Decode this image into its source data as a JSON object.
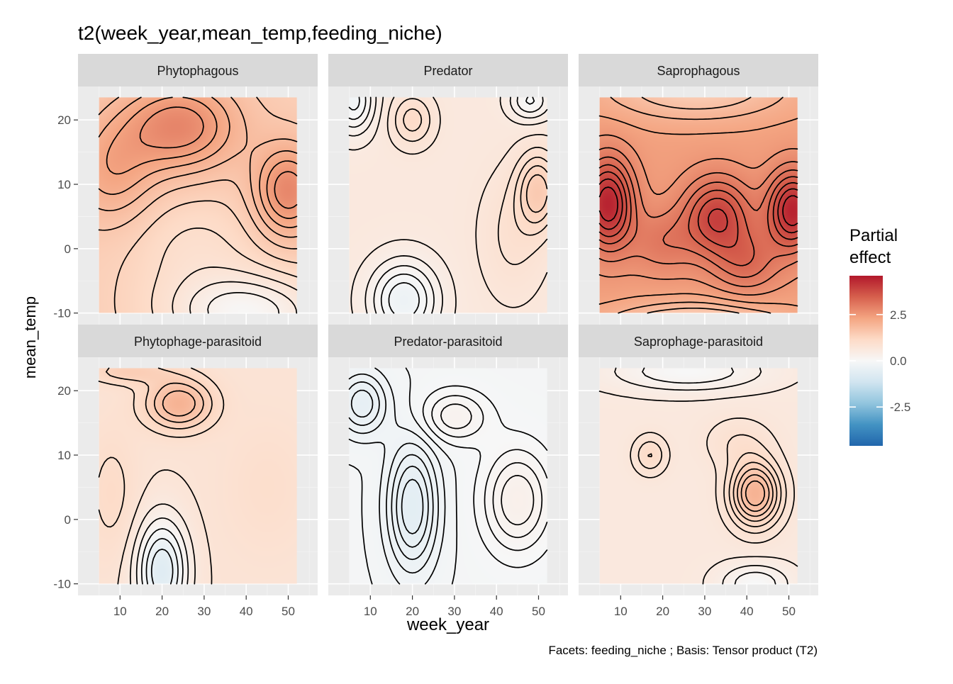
{
  "chart_data": {
    "type": "heatmap",
    "title": "t2(week_year,mean_temp,feeding_niche)",
    "caption": "Facets: feeding_niche ; Basis: Tensor product (T2)",
    "xlabel": "week_year",
    "ylabel": "mean_temp",
    "x_range": [
      5,
      52
    ],
    "y_range": [
      -10,
      23.5
    ],
    "x_ticks": [
      10,
      20,
      30,
      40,
      50
    ],
    "y_ticks": [
      -10,
      0,
      10,
      20
    ],
    "y_tick_labels": [
      "-10",
      "0",
      "10",
      "20"
    ],
    "x_tick_labels": [
      "10",
      "20",
      "30",
      "40",
      "50"
    ],
    "legend": {
      "title": "Partial effect",
      "title_lines": [
        "Partial",
        "effect"
      ],
      "position": "right",
      "limits": [
        -4.6,
        4.6
      ],
      "ticks": [
        -2.5,
        0.0,
        2.5
      ],
      "tick_labels": [
        "-2.5",
        "0.0",
        "2.5"
      ],
      "colors": [
        "#2166ac",
        "#4393c3",
        "#92c5de",
        "#d1e5f0",
        "#f7f7f7",
        "#fddbc7",
        "#f4a582",
        "#d6604d",
        "#b2182b"
      ]
    },
    "grid": true,
    "contours": true,
    "facets": [
      {
        "label": "Phytophagous",
        "base": 1.4,
        "components": [
          {
            "x": 24,
            "y": 19,
            "sx": 14,
            "sy": 7,
            "a": 1.4
          },
          {
            "x": 50,
            "y": 9,
            "sx": 8,
            "sy": 7,
            "a": 1.4
          },
          {
            "x": 8,
            "y": 12,
            "sx": 10,
            "sy": 8,
            "a": 0.8
          },
          {
            "x": 40,
            "y": -10,
            "sx": 18,
            "sy": 6,
            "a": -1.3
          },
          {
            "x": 28,
            "y": 0,
            "sx": 15,
            "sy": 8,
            "a": -0.4
          }
        ]
      },
      {
        "label": "Predator",
        "base": 0.6,
        "components": [
          {
            "x": 6,
            "y": 23,
            "sx": 5,
            "sy": 5,
            "a": -0.8
          },
          {
            "x": 18,
            "y": -8,
            "sx": 8,
            "sy": 6,
            "a": -0.9
          },
          {
            "x": 20,
            "y": 20,
            "sx": 5,
            "sy": 4,
            "a": 0.5
          },
          {
            "x": 50,
            "y": 9,
            "sx": 5,
            "sy": 6,
            "a": 0.8
          },
          {
            "x": 44,
            "y": 2,
            "sx": 8,
            "sy": 10,
            "a": 0.3
          },
          {
            "x": 48,
            "y": 23,
            "sx": 5,
            "sy": 3,
            "a": -0.6
          }
        ]
      },
      {
        "label": "Saprophagous",
        "base": 2.4,
        "components": [
          {
            "x": 7,
            "y": 7,
            "sx": 6,
            "sy": 7,
            "a": 2.0
          },
          {
            "x": 33,
            "y": 5,
            "sx": 8,
            "sy": 6,
            "a": 1.5
          },
          {
            "x": 51,
            "y": 6,
            "sx": 6,
            "sy": 6,
            "a": 2.0
          },
          {
            "x": 40,
            "y": -2,
            "sx": 8,
            "sy": 5,
            "a": 0.8
          },
          {
            "x": 20,
            "y": 1,
            "sx": 8,
            "sy": 5,
            "a": 0.6
          },
          {
            "x": 28,
            "y": -13,
            "sx": 20,
            "sy": 4,
            "a": -1.6
          },
          {
            "x": 28,
            "y": 25,
            "sx": 22,
            "sy": 5,
            "a": -1.0
          }
        ]
      },
      {
        "label": "Phytophage-parasitoid",
        "base": 0.8,
        "components": [
          {
            "x": 24,
            "y": 18,
            "sx": 8,
            "sy": 4,
            "a": 1.2
          },
          {
            "x": 20,
            "y": -8,
            "sx": 6,
            "sy": 8,
            "a": -1.5
          },
          {
            "x": 8,
            "y": 4,
            "sx": 6,
            "sy": 10,
            "a": 0.3
          },
          {
            "x": 45,
            "y": 5,
            "sx": 10,
            "sy": 10,
            "a": 0.2
          },
          {
            "x": 12,
            "y": 23,
            "sx": 10,
            "sy": 2,
            "a": 0.6
          }
        ]
      },
      {
        "label": "Predator-parasitoid",
        "base": -0.1,
        "components": [
          {
            "x": 20,
            "y": 2,
            "sx": 6,
            "sy": 10,
            "a": -0.5
          },
          {
            "x": 8,
            "y": 18,
            "sx": 6,
            "sy": 5,
            "a": -0.4
          },
          {
            "x": 45,
            "y": 3,
            "sx": 8,
            "sy": 8,
            "a": 0.4
          },
          {
            "x": 30,
            "y": 16,
            "sx": 8,
            "sy": 4,
            "a": 0.3
          }
        ]
      },
      {
        "label": "Saprophage-parasitoid",
        "base": 0.6,
        "components": [
          {
            "x": 42,
            "y": 4,
            "sx": 6,
            "sy": 5,
            "a": 1.4
          },
          {
            "x": 17,
            "y": 10,
            "sx": 4,
            "sy": 3,
            "a": 0.5
          },
          {
            "x": 26,
            "y": 23,
            "sx": 18,
            "sy": 3,
            "a": -0.6
          },
          {
            "x": 42,
            "y": -10,
            "sx": 8,
            "sy": 3,
            "a": -0.6
          },
          {
            "x": 38,
            "y": 12,
            "sx": 8,
            "sy": 4,
            "a": 0.3
          }
        ]
      }
    ]
  }
}
